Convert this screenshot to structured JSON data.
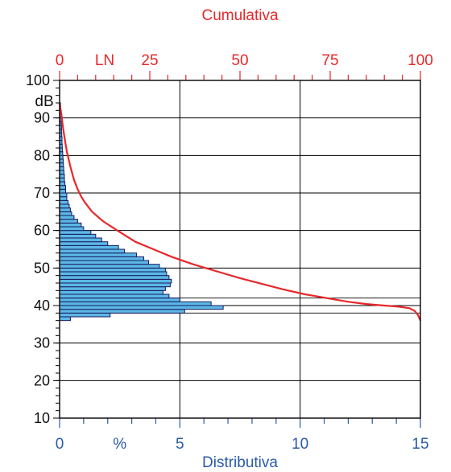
{
  "chart_data": {
    "type": "bar",
    "orientation": "horizontal",
    "title": "Cumulativa",
    "xlabel": "Distributiva",
    "ylabel": "dB",
    "x_bottom_range": [
      0,
      15
    ],
    "x_bottom_ticks": [
      "0",
      "%",
      "5",
      "10",
      "15"
    ],
    "x_top_range": [
      0,
      100
    ],
    "x_top_ticks": [
      "0",
      "LN",
      "25",
      "50",
      "75",
      "100"
    ],
    "y_range": [
      10,
      100
    ],
    "y_ticks": [
      "10",
      "20",
      "30",
      "40",
      "50",
      "60",
      "70",
      "80",
      "90",
      "100"
    ],
    "grid": true,
    "colors": {
      "bars": "#5bb8e6",
      "bar_edge": "#1a1a5e",
      "cumulative": "#e8272a",
      "axis_text_accent": "#2a5caa",
      "grid": "#000000"
    },
    "series": [
      {
        "name": "Distributiva",
        "bins_db": [
          36,
          37,
          38,
          39,
          40,
          41,
          42,
          43,
          44,
          45,
          46,
          47,
          48,
          49,
          50,
          51,
          52,
          53,
          54,
          55,
          56,
          57,
          58,
          59,
          60,
          61,
          62,
          63,
          64,
          65,
          66,
          67,
          68,
          69,
          70,
          71,
          72,
          73,
          74,
          75,
          76,
          77,
          78,
          79,
          80,
          81,
          82,
          83,
          84,
          85,
          86,
          87,
          88,
          89,
          90,
          91,
          92,
          93
        ],
        "values": [
          0.45,
          2.1,
          5.2,
          6.8,
          6.3,
          5.0,
          4.55,
          4.3,
          4.4,
          4.6,
          4.65,
          4.55,
          4.45,
          4.4,
          4.15,
          3.7,
          3.5,
          3.2,
          2.7,
          2.45,
          2.0,
          1.75,
          1.5,
          1.3,
          1.0,
          0.9,
          0.75,
          0.6,
          0.5,
          0.45,
          0.4,
          0.35,
          0.3,
          0.3,
          0.25,
          0.25,
          0.22,
          0.2,
          0.2,
          0.18,
          0.17,
          0.16,
          0.15,
          0.14,
          0.13,
          0.12,
          0.11,
          0.1,
          0.1,
          0.09,
          0.08,
          0.08,
          0.07,
          0.07,
          0.06,
          0.05,
          0.05,
          0.04
        ]
      },
      {
        "name": "Cumulativa",
        "points": [
          [
            0,
            94
          ],
          [
            0.5,
            91
          ],
          [
            1,
            87
          ],
          [
            1.5,
            84
          ],
          [
            2,
            81
          ],
          [
            3,
            77
          ],
          [
            4,
            73.5
          ],
          [
            5,
            71
          ],
          [
            6,
            69
          ],
          [
            7,
            67.5
          ],
          [
            9,
            65
          ],
          [
            12,
            62.5
          ],
          [
            16,
            60
          ],
          [
            21,
            57
          ],
          [
            26,
            55
          ],
          [
            31,
            53
          ],
          [
            37,
            51
          ],
          [
            44,
            49
          ],
          [
            50,
            47.3
          ],
          [
            56,
            45.8
          ],
          [
            62,
            44.3
          ],
          [
            68,
            43
          ],
          [
            74,
            42
          ],
          [
            80,
            41
          ],
          [
            85,
            40.4
          ],
          [
            90,
            40
          ],
          [
            94,
            39.7
          ],
          [
            97,
            39.3
          ],
          [
            98.5,
            38.5
          ],
          [
            99.3,
            37.5
          ],
          [
            100,
            36
          ]
        ]
      }
    ]
  }
}
